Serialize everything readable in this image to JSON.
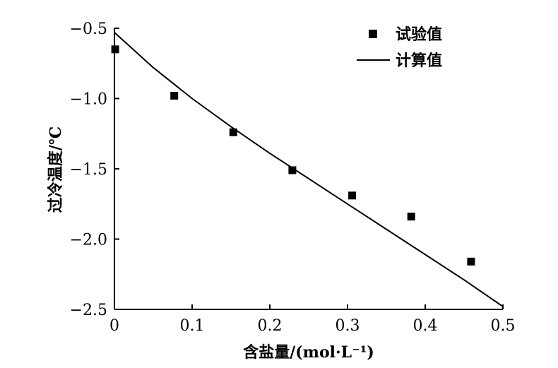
{
  "chart_data": {
    "type": "scatter",
    "xlabel": "含盐量/(mol·L⁻¹)",
    "ylabel": "过冷温度/℃",
    "xlim": [
      0,
      0.5
    ],
    "ylim": [
      -2.5,
      -0.5
    ],
    "x_ticks": [
      0,
      0.1,
      0.2,
      0.3,
      0.4,
      0.5
    ],
    "x_tick_labels": [
      "0",
      "0.1",
      "0.2",
      "0.3",
      "0.4",
      "0.5"
    ],
    "y_ticks": [
      -0.5,
      -1.0,
      -1.5,
      -2.0,
      -2.5
    ],
    "y_tick_labels": [
      "−0.5",
      "−1.0",
      "−1.5",
      "−2.0",
      "−2.5"
    ],
    "grid": false,
    "legend_position": "top-right",
    "series": [
      {
        "name": "试验值",
        "kind": "scatter",
        "marker": "square",
        "color": "#000000",
        "x": [
          0.001,
          0.077,
          0.153,
          0.229,
          0.306,
          0.382,
          0.459
        ],
        "y": [
          -0.65,
          -0.98,
          -1.24,
          -1.51,
          -1.69,
          -1.84,
          -2.16
        ]
      },
      {
        "name": "计算值",
        "kind": "line",
        "color": "#000000",
        "x": [
          0,
          0.05,
          0.1,
          0.15,
          0.2,
          0.25,
          0.3,
          0.35,
          0.4,
          0.45,
          0.5
        ],
        "y": [
          -0.53,
          -0.78,
          -1.0,
          -1.2,
          -1.39,
          -1.57,
          -1.75,
          -1.93,
          -2.11,
          -2.29,
          -2.48
        ]
      }
    ]
  }
}
